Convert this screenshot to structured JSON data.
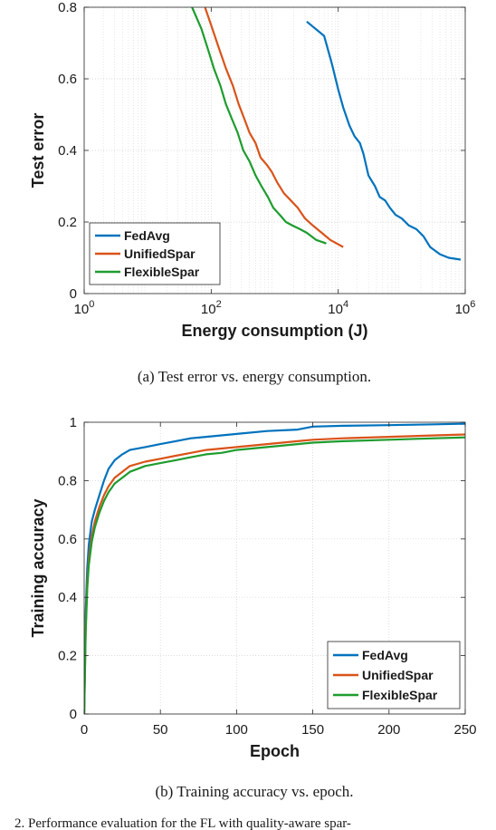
{
  "chart_data": [
    {
      "type": "line",
      "xlabel": "Energy consumption (J)",
      "ylabel": "Test error",
      "x_scale": "log",
      "xlim": [
        1,
        1000000
      ],
      "ylim": [
        0,
        0.8
      ],
      "x_ticks": [
        {
          "value": 1,
          "base": "10",
          "exp": "0"
        },
        {
          "value": 100,
          "base": "10",
          "exp": "2"
        },
        {
          "value": 10000,
          "base": "10",
          "exp": "4"
        },
        {
          "value": 1000000,
          "base": "10",
          "exp": "6"
        }
      ],
      "y_ticks": [
        {
          "value": 0,
          "label": "0"
        },
        {
          "value": 0.2,
          "label": "0.2"
        },
        {
          "value": 0.4,
          "label": "0.4"
        },
        {
          "value": 0.6,
          "label": "0.6"
        },
        {
          "value": 0.8,
          "label": "0.8"
        }
      ],
      "grid": true,
      "legend": "bottom-left",
      "caption": "(a)  Test error vs. energy consumption.",
      "series": [
        {
          "name": "FedAvg",
          "color": "#0072BD",
          "x": [
            3200,
            6000,
            8000,
            10000,
            12000,
            15000,
            18000,
            22000,
            25000,
            30000,
            38000,
            45000,
            55000,
            65000,
            80000,
            100000,
            130000,
            170000,
            220000,
            280000,
            400000,
            550000,
            850000
          ],
          "y": [
            0.76,
            0.72,
            0.64,
            0.57,
            0.52,
            0.47,
            0.44,
            0.42,
            0.39,
            0.33,
            0.3,
            0.27,
            0.26,
            0.24,
            0.22,
            0.21,
            0.19,
            0.18,
            0.16,
            0.13,
            0.11,
            0.1,
            0.095
          ]
        },
        {
          "name": "UnifiedSpar",
          "color": "#D95319",
          "x": [
            80,
            100,
            130,
            170,
            220,
            270,
            330,
            400,
            500,
            600,
            750,
            900,
            1100,
            1400,
            1800,
            2300,
            3000,
            4000,
            5500,
            7500,
            12000
          ],
          "y": [
            0.8,
            0.75,
            0.69,
            0.63,
            0.58,
            0.53,
            0.49,
            0.45,
            0.42,
            0.38,
            0.36,
            0.34,
            0.31,
            0.28,
            0.26,
            0.24,
            0.21,
            0.19,
            0.17,
            0.15,
            0.13
          ]
        },
        {
          "name": "FlexibleSpar",
          "color": "#1E9C2E",
          "x": [
            50,
            70,
            90,
            110,
            140,
            170,
            210,
            260,
            320,
            400,
            500,
            620,
            780,
            950,
            1200,
            1500,
            1900,
            2500,
            3200,
            4500,
            6500
          ],
          "y": [
            0.8,
            0.74,
            0.68,
            0.63,
            0.58,
            0.53,
            0.49,
            0.45,
            0.4,
            0.37,
            0.33,
            0.3,
            0.27,
            0.24,
            0.22,
            0.2,
            0.19,
            0.18,
            0.17,
            0.15,
            0.14
          ]
        }
      ]
    },
    {
      "type": "line",
      "xlabel": "Epoch",
      "ylabel": "Training accuracy",
      "xlim": [
        0,
        250
      ],
      "ylim": [
        0,
        1
      ],
      "x_ticks": [
        {
          "value": 0,
          "label": "0"
        },
        {
          "value": 50,
          "label": "50"
        },
        {
          "value": 100,
          "label": "100"
        },
        {
          "value": 150,
          "label": "150"
        },
        {
          "value": 200,
          "label": "200"
        },
        {
          "value": 250,
          "label": "250"
        }
      ],
      "y_ticks": [
        {
          "value": 0,
          "label": "0"
        },
        {
          "value": 0.2,
          "label": "0.2"
        },
        {
          "value": 0.4,
          "label": "0.4"
        },
        {
          "value": 0.6,
          "label": "0.6"
        },
        {
          "value": 0.8,
          "label": "0.8"
        },
        {
          "value": 1,
          "label": "1"
        }
      ],
      "grid": true,
      "legend": "bottom-right",
      "caption": "(b)  Training accuracy vs. epoch.",
      "series": [
        {
          "name": "FedAvg",
          "color": "#0072BD",
          "x": [
            0,
            1,
            2,
            3,
            5,
            7,
            10,
            13,
            16,
            20,
            25,
            30,
            40,
            50,
            60,
            70,
            80,
            90,
            100,
            120,
            140,
            150,
            170,
            200,
            230,
            250
          ],
          "y": [
            0,
            0.35,
            0.5,
            0.58,
            0.66,
            0.7,
            0.75,
            0.8,
            0.84,
            0.87,
            0.89,
            0.905,
            0.915,
            0.925,
            0.935,
            0.945,
            0.95,
            0.955,
            0.96,
            0.97,
            0.975,
            0.985,
            0.988,
            0.99,
            0.993,
            0.995
          ]
        },
        {
          "name": "UnifiedSpar",
          "color": "#D95319",
          "x": [
            0,
            1,
            2,
            3,
            5,
            7,
            10,
            13,
            16,
            20,
            25,
            30,
            40,
            50,
            60,
            70,
            80,
            90,
            100,
            120,
            140,
            150,
            170,
            200,
            230,
            250
          ],
          "y": [
            0,
            0.3,
            0.45,
            0.53,
            0.61,
            0.66,
            0.71,
            0.75,
            0.78,
            0.81,
            0.83,
            0.85,
            0.865,
            0.875,
            0.885,
            0.895,
            0.905,
            0.91,
            0.915,
            0.925,
            0.935,
            0.94,
            0.945,
            0.95,
            0.955,
            0.958
          ]
        },
        {
          "name": "FlexibleSpar",
          "color": "#1E9C2E",
          "x": [
            0,
            1,
            2,
            3,
            5,
            7,
            10,
            13,
            16,
            20,
            25,
            30,
            40,
            50,
            60,
            70,
            80,
            90,
            100,
            120,
            140,
            150,
            170,
            200,
            230,
            250
          ],
          "y": [
            0,
            0.28,
            0.43,
            0.51,
            0.59,
            0.64,
            0.69,
            0.73,
            0.76,
            0.79,
            0.81,
            0.83,
            0.85,
            0.86,
            0.87,
            0.88,
            0.89,
            0.895,
            0.905,
            0.915,
            0.925,
            0.93,
            0.935,
            0.94,
            0.945,
            0.948
          ]
        }
      ]
    }
  ],
  "footer_text": "2.  Performance evaluation for the FL with quality-aware spar-"
}
